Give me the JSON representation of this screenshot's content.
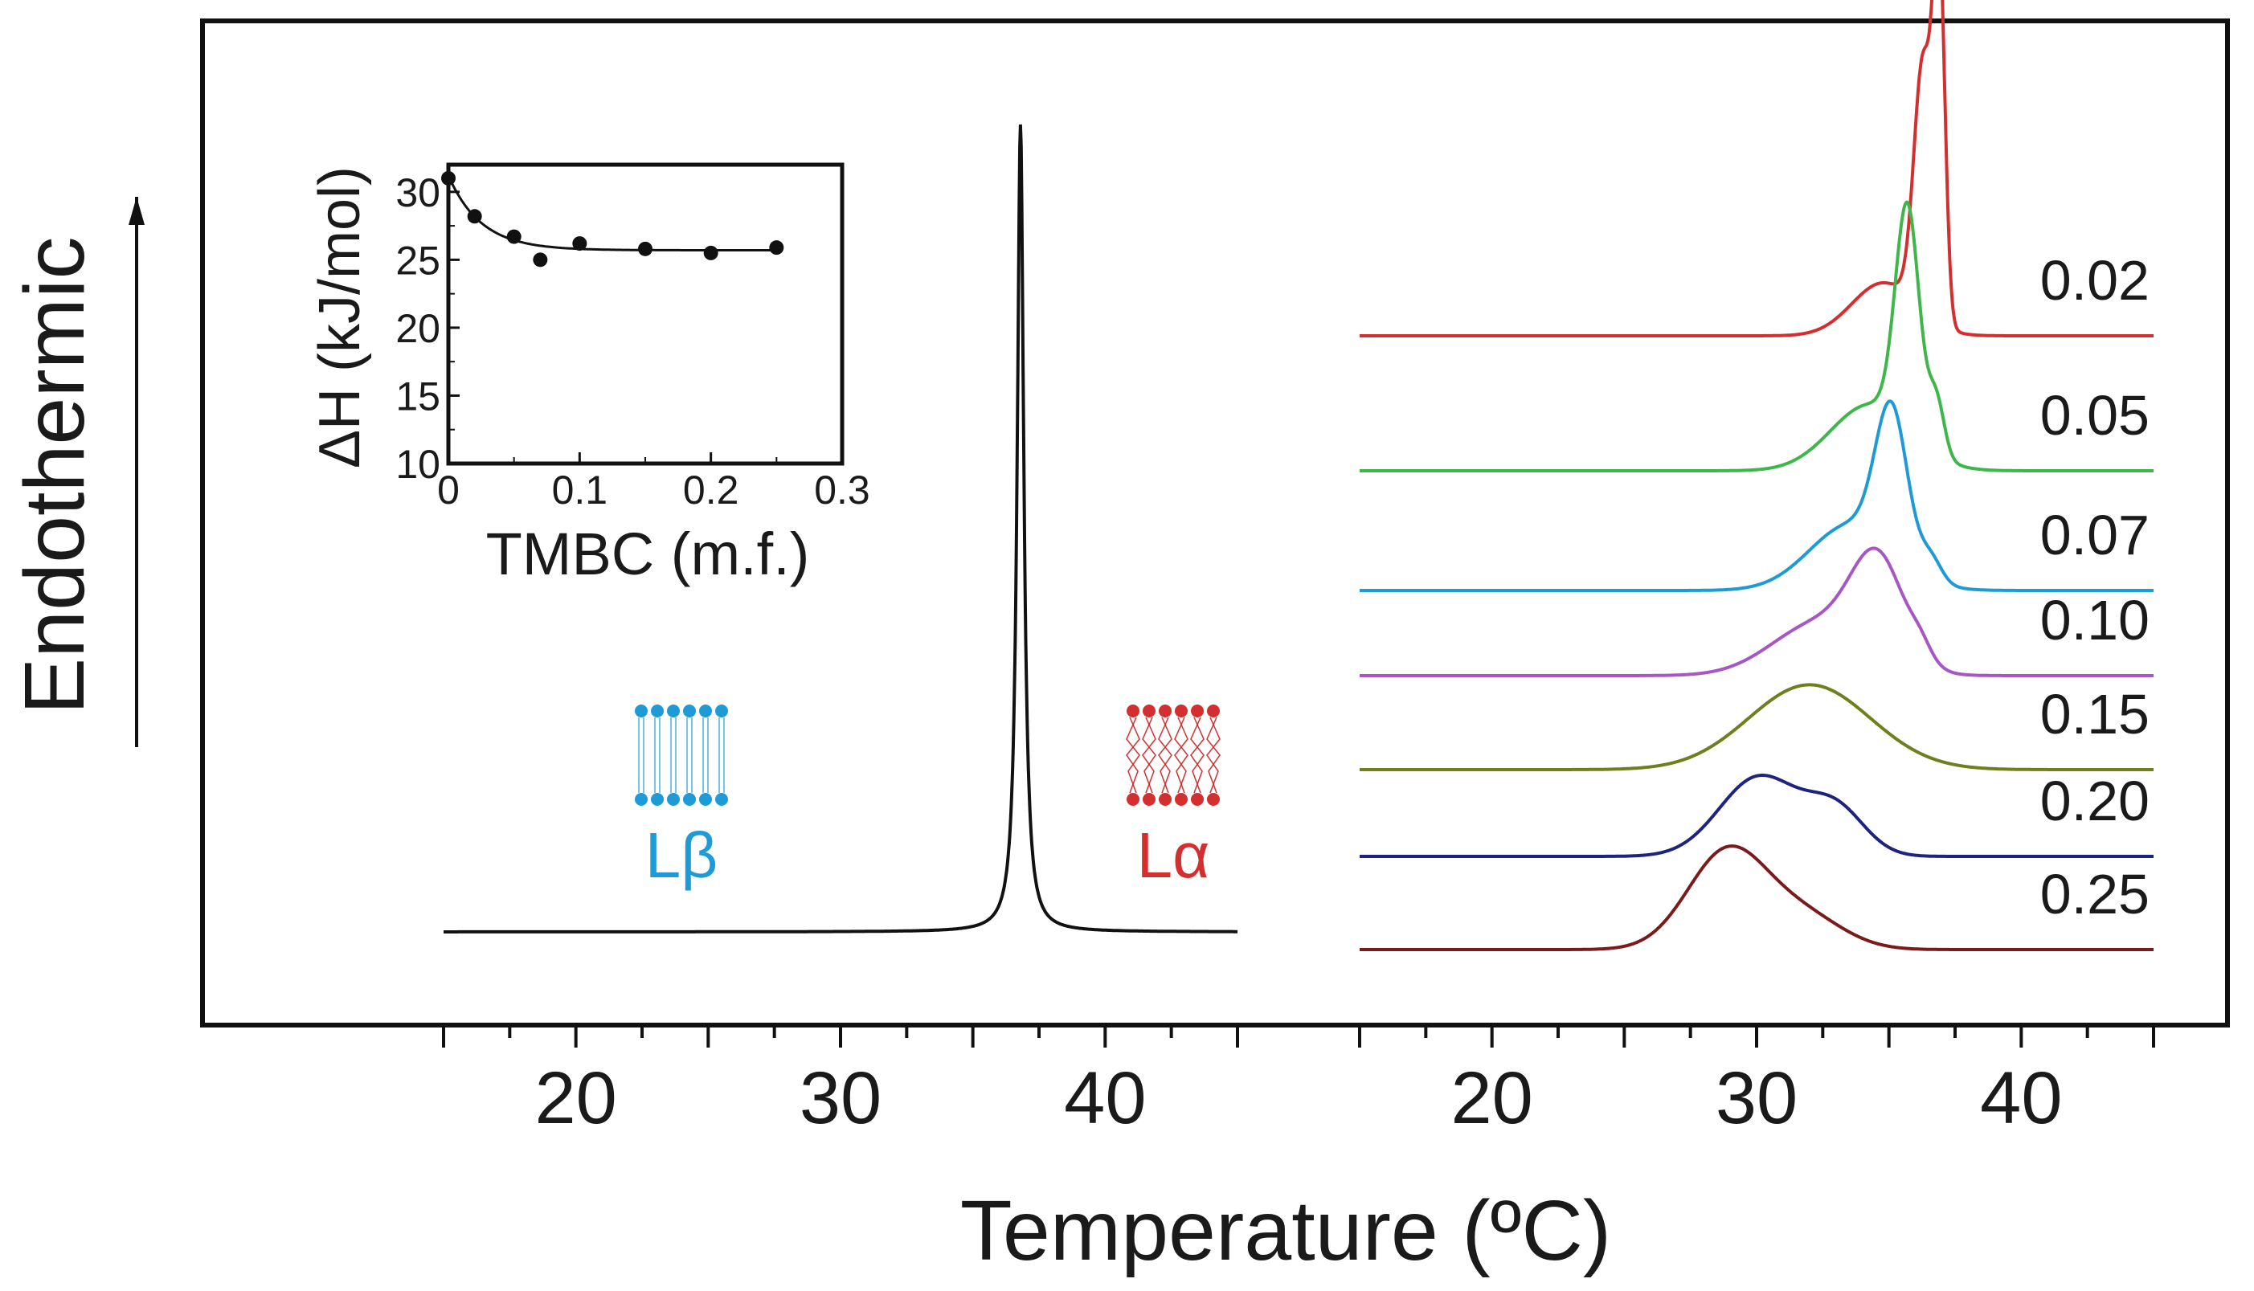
{
  "chart_data": {
    "type": "line",
    "y_axis_label": "Endothermic",
    "x_axis_label": "Temperature (ºC)",
    "panels": [
      {
        "name": "pure-dppc",
        "x_ticks": [
          "20",
          "30",
          "40"
        ],
        "xlim": [
          15,
          45
        ],
        "series": [
          {
            "name": "pure",
            "color": "#111111",
            "peak_T": 36.8,
            "peak_height": 1.0
          }
        ],
        "phase_labels": {
          "gel": {
            "prefix": "L",
            "suffix": "β",
            "color": "#1e9bd7"
          },
          "fluid": {
            "prefix": "L",
            "suffix": "α",
            "color": "#d32f2f"
          }
        }
      },
      {
        "name": "with-tmbc",
        "x_ticks": [
          "20",
          "30",
          "40"
        ],
        "xlim": [
          15,
          45
        ],
        "series": [
          {
            "label": "0.02",
            "color": "#d32f2f",
            "peaks": [
              [
                36.3,
                0.95,
                0.35
              ],
              [
                36.9,
                1.3,
                0.22
              ],
              [
                34.8,
                0.2,
                1.2
              ]
            ]
          },
          {
            "label": "0.05",
            "color": "#3fb64a",
            "peaks": [
              [
                35.7,
                0.85,
                0.45
              ],
              [
                34.3,
                0.25,
                1.5
              ],
              [
                36.8,
                0.2,
                0.3
              ]
            ]
          },
          {
            "label": "0.07",
            "color": "#1e9bd7",
            "peaks": [
              [
                35.1,
                0.55,
                0.6
              ],
              [
                33.6,
                0.25,
                1.6
              ],
              [
                36.6,
                0.08,
                0.4
              ]
            ]
          },
          {
            "label": "0.10",
            "color": "#a656c5",
            "peaks": [
              [
                34.6,
                0.38,
                1.0
              ],
              [
                32.4,
                0.2,
                1.8
              ],
              [
                36.2,
                0.05,
                0.4
              ]
            ]
          },
          {
            "label": "0.15",
            "color": "#6f7f1d",
            "peaks": [
              [
                32.0,
                0.32,
                2.3
              ]
            ]
          },
          {
            "label": "0.20",
            "color": "#1d2480",
            "peaks": [
              [
                30.1,
                0.3,
                1.5
              ],
              [
                33.0,
                0.17,
                1.1
              ]
            ]
          },
          {
            "label": "0.25",
            "color": "#7a1a1a",
            "peaks": [
              [
                28.9,
                0.37,
                1.5
              ],
              [
                31.8,
                0.12,
                1.5
              ]
            ]
          }
        ],
        "label_colors": [
          "#d32f2f",
          "#3fb64a",
          "#1e9bd7",
          "#a656c5",
          "#4a4a4a",
          "#1d2480",
          "#a32a2a"
        ]
      }
    ],
    "inset": {
      "type": "scatter",
      "xlabel": "TMBC (m.f.)",
      "ylabel": "ΔH (kJ/mol)",
      "xlim": [
        0,
        0.3
      ],
      "ylim": [
        10,
        32
      ],
      "x_ticks": [
        "0",
        "0.1",
        "0.2",
        "0.3"
      ],
      "y_ticks": [
        "10",
        "15",
        "20",
        "25",
        "30"
      ],
      "points": [
        {
          "x": 0.0,
          "y": 31.0
        },
        {
          "x": 0.02,
          "y": 28.2
        },
        {
          "x": 0.05,
          "y": 26.7
        },
        {
          "x": 0.07,
          "y": 25.0
        },
        {
          "x": 0.1,
          "y": 26.2
        },
        {
          "x": 0.15,
          "y": 25.8
        },
        {
          "x": 0.2,
          "y": 25.5
        },
        {
          "x": 0.25,
          "y": 25.9
        }
      ],
      "fit": {
        "A": 5.5,
        "tau": 0.025,
        "C": 25.7
      }
    }
  }
}
